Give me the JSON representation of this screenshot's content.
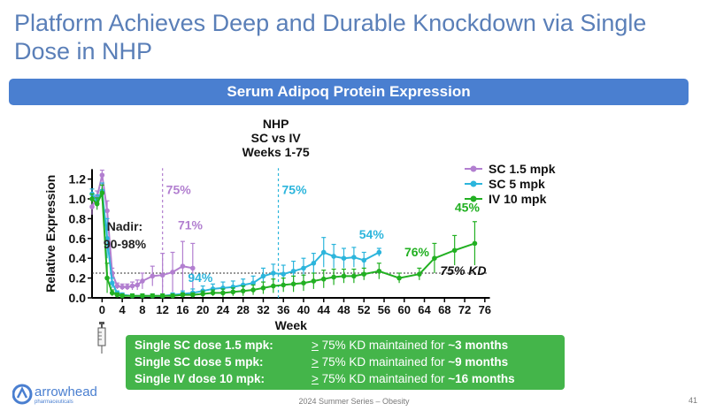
{
  "slide": {
    "title": "Platform Achieves Deep and Durable Knockdown via Single Dose in NHP",
    "banner": "Serum Adipoq Protein Expression",
    "footer_center": "2024 Summer Series – Obesity",
    "page_number": "41",
    "logo_text": "arrowhead",
    "logo_subtext": "pharmaceuticals"
  },
  "summary": {
    "rows": [
      {
        "label": "Single SC dose 1.5 mpk:",
        "ge": ">",
        "text": " 75% KD maintained for ",
        "bold": "~3 months"
      },
      {
        "label": "Single SC dose 5 mpk:",
        "ge": ">",
        "text": " 75% KD maintained for ",
        "bold": "~9 months"
      },
      {
        "label": "Single IV dose 10 mpk:",
        "ge": ">",
        "text": " 75% KD maintained for ",
        "bold": "~16 months"
      }
    ]
  },
  "colors": {
    "sc15": "#b27fd0",
    "sc5": "#2cb5dc",
    "iv10": "#22b022",
    "title": "#5a7fb8",
    "banner": "#4a7fd0",
    "summary_bg": "#44b54a"
  },
  "chart_data": {
    "type": "line",
    "title": "NHP\nSC vs IV\nWeeks 1-75",
    "title_lines": [
      "NHP",
      "SC vs IV",
      "Weeks 1-75"
    ],
    "xlabel": "Week",
    "ylabel": "Relative Expression",
    "xlim": [
      -2,
      77
    ],
    "ylim": [
      0,
      1.3
    ],
    "xticks": [
      0,
      4,
      8,
      12,
      16,
      20,
      24,
      28,
      32,
      36,
      40,
      44,
      48,
      52,
      56,
      60,
      64,
      68,
      72,
      76
    ],
    "yticks": [
      0.0,
      0.2,
      0.4,
      0.6,
      0.8,
      1.0,
      1.2
    ],
    "ytick_labels": [
      "0.0",
      "0.2",
      "0.4",
      "0.6",
      "0.8",
      "1.0",
      "1.2"
    ],
    "legend_position": "top-right",
    "series": [
      {
        "name": "SC 1.5 mpk",
        "color": "#b27fd0",
        "x": [
          -2,
          -1,
          0,
          1,
          2,
          3,
          4,
          5,
          6,
          7,
          8,
          10,
          12,
          14,
          16,
          18
        ],
        "y": [
          0.92,
          1.02,
          1.24,
          0.88,
          0.25,
          0.12,
          0.11,
          0.11,
          0.12,
          0.13,
          0.17,
          0.22,
          0.23,
          0.26,
          0.32,
          0.3
        ],
        "err": [
          0.08,
          0.06,
          0.05,
          0.1,
          0.05,
          0.03,
          0.03,
          0.03,
          0.04,
          0.05,
          0.08,
          0.1,
          0.22,
          0.2,
          0.25,
          0.25
        ]
      },
      {
        "name": "SC 5 mpk",
        "color": "#2cb5dc",
        "x": [
          -2,
          -1,
          0,
          1,
          2,
          3,
          4,
          6,
          8,
          10,
          12,
          14,
          16,
          18,
          20,
          22,
          24,
          26,
          28,
          30,
          32,
          34,
          36,
          38,
          40,
          42,
          44,
          46,
          48,
          50,
          52,
          55
        ],
        "y": [
          1.05,
          0.98,
          1.08,
          0.6,
          0.15,
          0.05,
          0.03,
          0.02,
          0.02,
          0.02,
          0.02,
          0.03,
          0.04,
          0.05,
          0.07,
          0.09,
          0.1,
          0.11,
          0.13,
          0.15,
          0.22,
          0.25,
          0.24,
          0.27,
          0.3,
          0.35,
          0.46,
          0.42,
          0.4,
          0.41,
          0.38,
          0.46
        ],
        "err": [
          0.05,
          0.06,
          0.08,
          0.2,
          0.05,
          0.02,
          0.02,
          0.02,
          0.02,
          0.02,
          0.02,
          0.02,
          0.03,
          0.04,
          0.05,
          0.05,
          0.06,
          0.06,
          0.06,
          0.07,
          0.08,
          0.09,
          0.09,
          0.1,
          0.1,
          0.1,
          0.15,
          0.12,
          0.1,
          0.1,
          0.08,
          0.04
        ]
      },
      {
        "name": "IV 10 mpk",
        "color": "#22b022",
        "x": [
          -2,
          -1,
          0,
          1,
          2,
          3,
          4,
          6,
          8,
          10,
          12,
          14,
          16,
          18,
          20,
          22,
          24,
          26,
          28,
          30,
          32,
          34,
          36,
          38,
          40,
          42,
          44,
          46,
          48,
          50,
          52,
          55,
          59,
          63,
          66,
          70,
          74
        ],
        "y": [
          1.0,
          0.95,
          1.06,
          0.2,
          0.05,
          0.03,
          0.02,
          0.02,
          0.02,
          0.02,
          0.02,
          0.02,
          0.03,
          0.03,
          0.04,
          0.05,
          0.05,
          0.06,
          0.07,
          0.08,
          0.1,
          0.12,
          0.13,
          0.14,
          0.15,
          0.17,
          0.19,
          0.21,
          0.22,
          0.22,
          0.24,
          0.27,
          0.2,
          0.24,
          0.4,
          0.48,
          0.55
        ],
        "err": [
          0.05,
          0.06,
          0.08,
          0.15,
          0.03,
          0.02,
          0.02,
          0.02,
          0.02,
          0.02,
          0.02,
          0.02,
          0.02,
          0.02,
          0.03,
          0.03,
          0.04,
          0.04,
          0.05,
          0.05,
          0.06,
          0.07,
          0.07,
          0.08,
          0.08,
          0.08,
          0.09,
          0.08,
          0.07,
          0.07,
          0.06,
          0.08,
          0.05,
          0.06,
          0.15,
          0.15,
          0.22
        ]
      }
    ],
    "reference_line": {
      "y": 0.25,
      "label": "75% KD"
    },
    "vlines": [
      {
        "x": 12,
        "label": "75%",
        "color": "#b27fd0"
      },
      {
        "x": 35,
        "label": "75%",
        "color": "#2cb5dc"
      }
    ],
    "annotations": [
      {
        "text": "Nadir:",
        "x": 4.5,
        "y": 0.68,
        "color": "#222222"
      },
      {
        "text": "90-98%",
        "x": 4.5,
        "y": 0.5,
        "color": "#222222"
      },
      {
        "text": "71%",
        "x": 17.5,
        "y": 0.69,
        "color": "#b27fd0"
      },
      {
        "text": "94%",
        "x": 19.5,
        "y": 0.16,
        "color": "#2cb5dc"
      },
      {
        "text": "54%",
        "x": 53.5,
        "y": 0.6,
        "color": "#2cb5dc"
      },
      {
        "text": "76%",
        "x": 62.5,
        "y": 0.42,
        "color": "#22b022"
      },
      {
        "text": "45%",
        "x": 72.5,
        "y": 0.87,
        "color": "#22b022"
      }
    ]
  }
}
